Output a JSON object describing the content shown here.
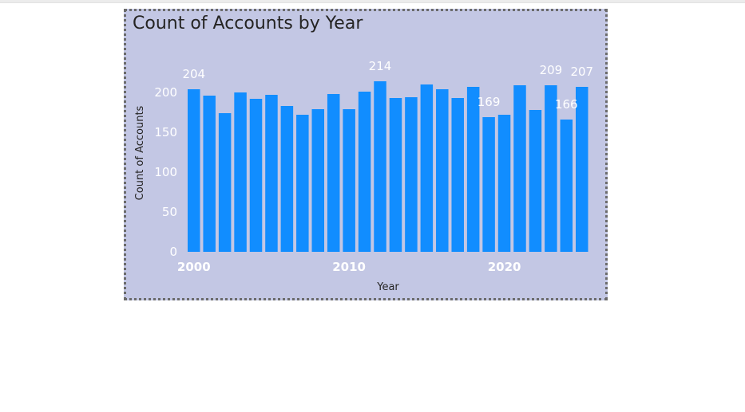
{
  "chart_data": {
    "type": "bar",
    "title": "Count of Accounts by Year",
    "xlabel": "Year",
    "ylabel": "Count of Accounts",
    "categories": [
      2000,
      2001,
      2002,
      2003,
      2004,
      2005,
      2006,
      2007,
      2008,
      2009,
      2010,
      2011,
      2012,
      2013,
      2014,
      2015,
      2016,
      2017,
      2018,
      2019,
      2020,
      2021,
      2022,
      2023,
      2024,
      2025
    ],
    "values": [
      204,
      196,
      174,
      200,
      192,
      197,
      183,
      172,
      179,
      198,
      179,
      201,
      214,
      193,
      194,
      210,
      204,
      193,
      207,
      169,
      172,
      209,
      178,
      209,
      166,
      207
    ],
    "ylim": [
      0,
      240
    ],
    "yticks": [
      0,
      50,
      100,
      150,
      200
    ],
    "xticks": [
      2000,
      2010,
      2020
    ],
    "data_labels": [
      {
        "year": 2000,
        "text": "204"
      },
      {
        "year": 2012,
        "text": "214"
      },
      {
        "year": 2019,
        "text": "169"
      },
      {
        "year": 2023,
        "text": "209"
      },
      {
        "year": 2024,
        "text": "166"
      },
      {
        "year": 2025,
        "text": "207"
      }
    ],
    "bar_color": "#118dff",
    "background_color": "#c3c7e4",
    "grid": false,
    "legend": "none"
  }
}
